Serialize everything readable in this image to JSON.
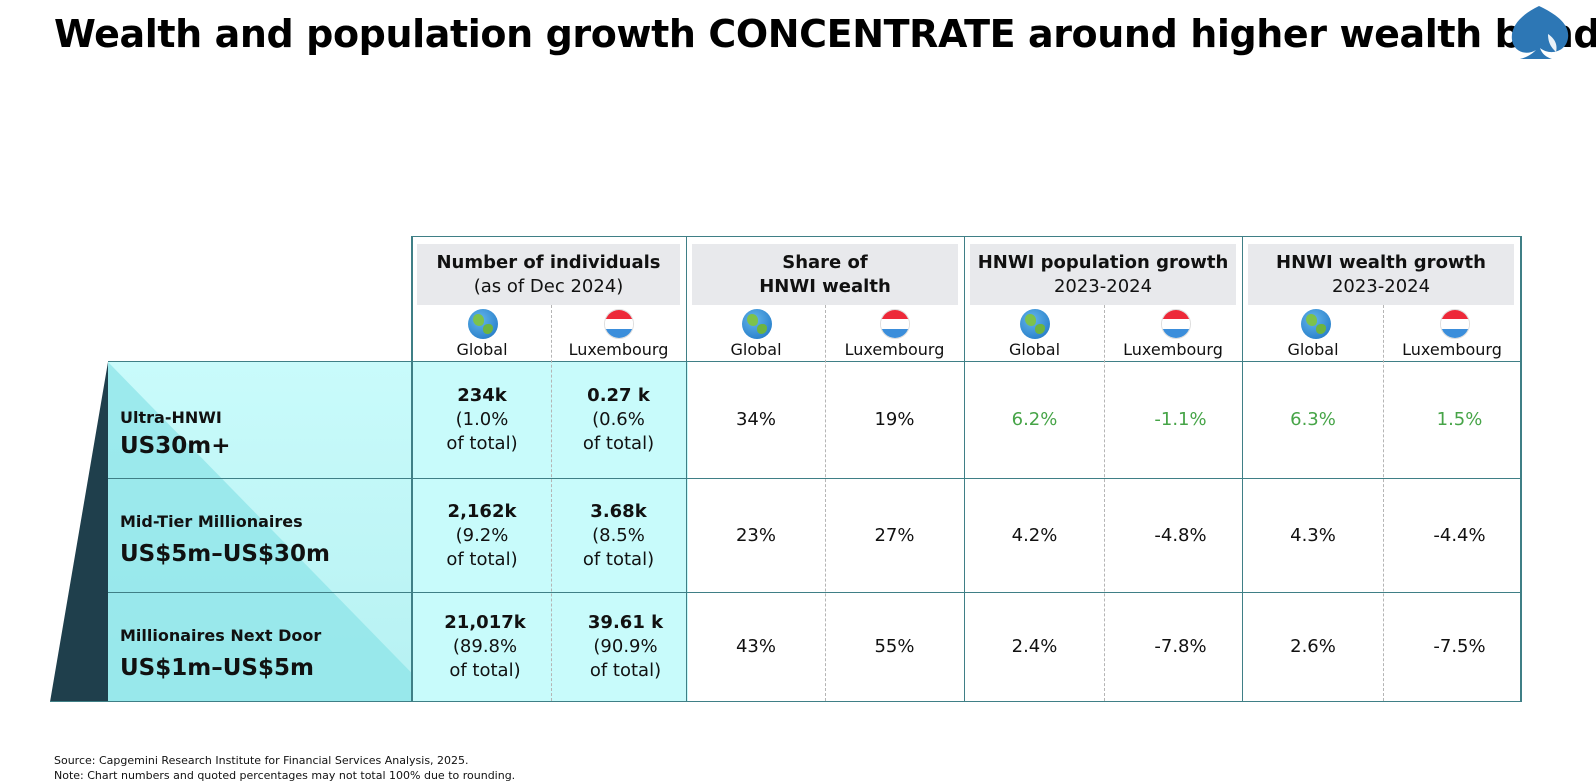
{
  "title": "Wealth and population growth CONCENTRATE around higher wealth bands",
  "logo_icon": "spade-logo-icon",
  "colors": {
    "accent_teal": "#3f7f86",
    "band_light": "#c6fbfb",
    "band_dark": "#1f3f4c",
    "positive_green": "#46a447",
    "header_bg": "#e8e9ec"
  },
  "column_groups": [
    {
      "title": "Number of individuals",
      "subtitle": "(as of Dec 2024)"
    },
    {
      "title": "Share of",
      "subtitle": "HNWI wealth"
    },
    {
      "title": "HNWI population growth",
      "subtitle": "2023-2024"
    },
    {
      "title": "HNWI wealth growth",
      "subtitle": "2023-2024"
    }
  ],
  "sub_columns": [
    {
      "label": "Global",
      "icon": "globe-icon"
    },
    {
      "label": "Luxembourg",
      "icon": "luxembourg-flag-icon"
    }
  ],
  "rows": [
    {
      "name": "Ultra-HNWI",
      "range": "US30m+",
      "individuals": [
        {
          "count": "234k",
          "pct": "(1.0%",
          "suffix": "of total)"
        },
        {
          "count": "0.27 k",
          "pct": "(0.6%",
          "suffix": "of total)"
        }
      ],
      "share": [
        "34%",
        "19%"
      ],
      "pop_growth": [
        "6.2%",
        "-1.1%"
      ],
      "wealth_growth": [
        "6.3%",
        "1.5%"
      ]
    },
    {
      "name": "Mid-Tier Millionaires",
      "range": "US$5m–US$30m",
      "individuals": [
        {
          "count": "2,162k",
          "pct": "(9.2%",
          "suffix": "of total)"
        },
        {
          "count": "3.68k",
          "pct": "(8.5%",
          "suffix": "of total)"
        }
      ],
      "share": [
        "23%",
        "27%"
      ],
      "pop_growth": [
        "4.2%",
        "-4.8%"
      ],
      "wealth_growth": [
        "4.3%",
        "-4.4%"
      ]
    },
    {
      "name": "Millionaires Next Door",
      "range": "US$1m–US$5m",
      "individuals": [
        {
          "count": "21,017k",
          "pct": "(89.8%",
          "suffix": "of total)"
        },
        {
          "count": "39.61 k",
          "pct": "(90.9%",
          "suffix": "of total)"
        }
      ],
      "share": [
        "43%",
        "55%"
      ],
      "pop_growth": [
        "2.4%",
        "-7.8%"
      ],
      "wealth_growth": [
        "2.6%",
        "-7.5%"
      ]
    }
  ],
  "footer": {
    "source": "Source: Capgemini Research Institute for Financial Services Analysis, 2025.",
    "note": "Note: Chart numbers and quoted percentages may not total 100% due to rounding."
  }
}
